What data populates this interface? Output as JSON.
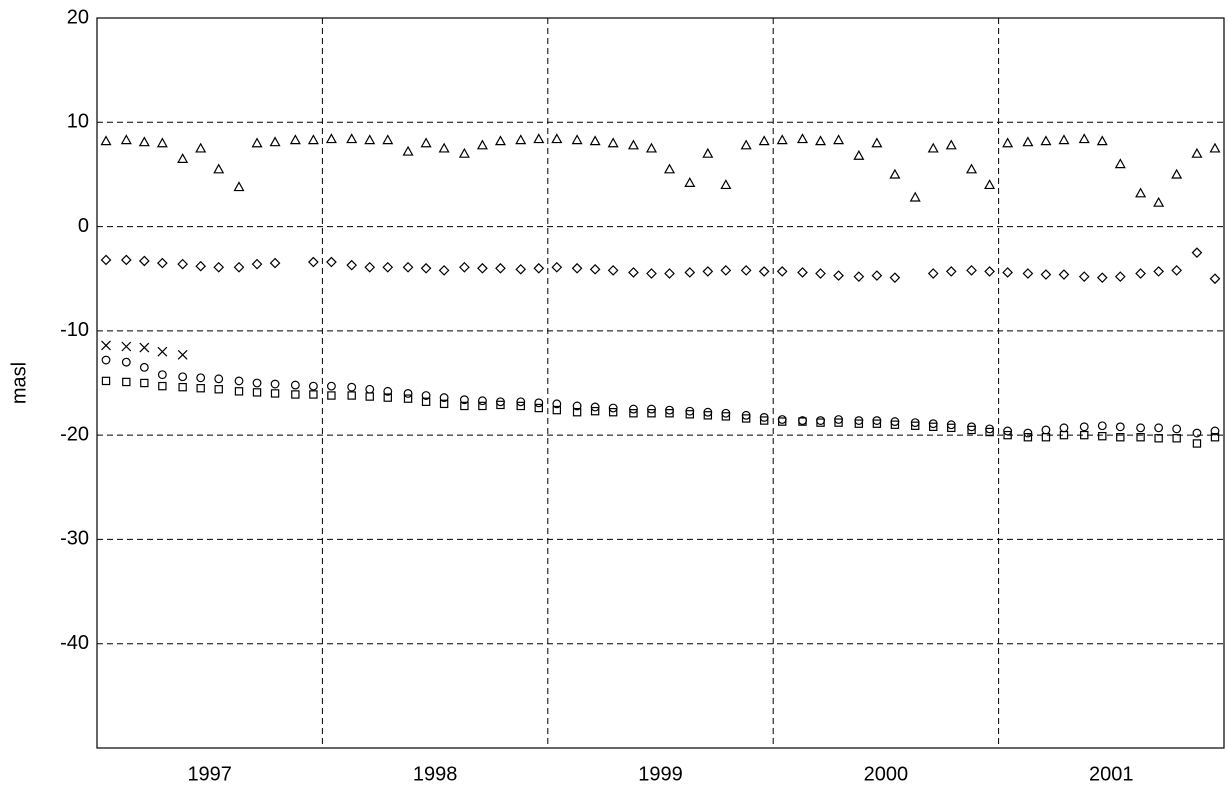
{
  "chart_data": {
    "type": "scatter",
    "y_label": "masl",
    "x": [
      1997.04,
      1997.13,
      1997.21,
      1997.29,
      1997.38,
      1997.46,
      1997.54,
      1997.63,
      1997.71,
      1997.79,
      1997.88,
      1997.96,
      1998.04,
      1998.13,
      1998.21,
      1998.29,
      1998.38,
      1998.46,
      1998.54,
      1998.63,
      1998.71,
      1998.79,
      1998.88,
      1998.96,
      1999.04,
      1999.13,
      1999.21,
      1999.29,
      1999.38,
      1999.46,
      1999.54,
      1999.63,
      1999.71,
      1999.79,
      1999.88,
      1999.96,
      2000.04,
      2000.13,
      2000.21,
      2000.29,
      2000.38,
      2000.46,
      2000.54,
      2000.63,
      2000.71,
      2000.79,
      2000.88,
      2000.96,
      2001.04,
      2001.13,
      2001.21,
      2001.29,
      2001.38,
      2001.46,
      2001.54,
      2001.63,
      2001.71,
      2001.79,
      2001.88,
      2001.96
    ],
    "series": [
      {
        "marker": "triangle",
        "color": "#000000",
        "values": [
          8.2,
          8.3,
          8.1,
          8.0,
          6.5,
          7.5,
          5.5,
          3.8,
          8.0,
          8.1,
          8.3,
          8.3,
          8.4,
          8.4,
          8.3,
          8.3,
          7.2,
          8.0,
          7.5,
          7.0,
          7.8,
          8.2,
          8.3,
          8.4,
          8.4,
          8.3,
          8.2,
          8.0,
          7.8,
          7.5,
          5.5,
          4.2,
          7.0,
          4.0,
          7.8,
          8.2,
          8.3,
          8.4,
          8.2,
          8.3,
          6.8,
          8.0,
          5.0,
          2.8,
          7.5,
          7.8,
          5.5,
          4.0,
          8.0,
          8.1,
          8.2,
          8.3,
          8.4,
          8.2,
          6.0,
          3.2,
          2.3,
          5.0,
          7.0,
          7.5
        ]
      },
      {
        "marker": "diamond",
        "color": "#000000",
        "values": [
          -3.2,
          -3.2,
          -3.3,
          -3.5,
          -3.6,
          -3.8,
          -3.9,
          -3.9,
          -3.6,
          -3.5,
          null,
          -3.4,
          -3.4,
          -3.7,
          -3.9,
          -3.9,
          -3.9,
          -4.0,
          -4.2,
          -3.9,
          -4.0,
          -4.0,
          -4.1,
          -4.0,
          -3.9,
          -4.0,
          -4.1,
          -4.2,
          -4.4,
          -4.5,
          -4.5,
          -4.4,
          -4.3,
          -4.2,
          -4.2,
          -4.3,
          -4.3,
          -4.4,
          -4.5,
          -4.7,
          -4.8,
          -4.7,
          -4.9,
          null,
          -4.5,
          -4.3,
          -4.2,
          -4.3,
          -4.4,
          -4.5,
          -4.6,
          -4.6,
          -4.8,
          -4.9,
          -4.8,
          -4.5,
          -4.3,
          -4.2,
          -2.5,
          -5.0
        ]
      },
      {
        "marker": "circle",
        "color": "#000000",
        "values": [
          -12.8,
          -13.0,
          -13.5,
          -14.2,
          -14.4,
          -14.5,
          -14.6,
          -14.8,
          -15.0,
          -15.1,
          -15.2,
          -15.3,
          -15.3,
          -15.4,
          -15.6,
          -15.8,
          -16.0,
          -16.2,
          -16.4,
          -16.6,
          -16.7,
          -16.8,
          -16.8,
          -16.9,
          -17.0,
          -17.2,
          -17.3,
          -17.4,
          -17.5,
          -17.5,
          -17.6,
          -17.7,
          -17.8,
          -17.9,
          -18.1,
          -18.3,
          -18.5,
          -18.6,
          -18.6,
          -18.5,
          -18.6,
          -18.6,
          -18.7,
          -18.8,
          -18.9,
          -19.0,
          -19.2,
          -19.4,
          -19.6,
          -19.8,
          -19.5,
          -19.3,
          -19.2,
          -19.1,
          -19.2,
          -19.3,
          -19.3,
          -19.4,
          -19.8,
          -19.6
        ]
      },
      {
        "marker": "square",
        "color": "#000000",
        "values": [
          -14.8,
          -14.9,
          -15.0,
          -15.3,
          -15.4,
          -15.5,
          -15.6,
          -15.8,
          -15.9,
          -16.0,
          -16.1,
          -16.1,
          -16.2,
          -16.2,
          -16.3,
          -16.4,
          -16.5,
          -16.8,
          -17.0,
          -17.2,
          -17.2,
          -17.1,
          -17.2,
          -17.4,
          -17.6,
          -17.8,
          -17.7,
          -17.8,
          -17.9,
          -17.9,
          -17.9,
          -18.0,
          -18.1,
          -18.2,
          -18.4,
          -18.6,
          -18.7,
          -18.7,
          -18.8,
          -18.8,
          -18.9,
          -18.9,
          -19.0,
          -19.1,
          -19.2,
          -19.3,
          -19.5,
          -19.7,
          -20.0,
          -20.2,
          -20.2,
          -20.0,
          -20.0,
          -20.1,
          -20.2,
          -20.2,
          -20.3,
          -20.3,
          -20.8,
          -20.2
        ]
      },
      {
        "marker": "cross",
        "color": "#000000",
        "values": [
          -11.4,
          -11.5,
          -11.6,
          -12.0,
          -12.3,
          null,
          null,
          null,
          null,
          null,
          null,
          null,
          null,
          null,
          null,
          null,
          null,
          null,
          null,
          null,
          null,
          null,
          null,
          null,
          null,
          null,
          null,
          null,
          null,
          null,
          null,
          null,
          null,
          null,
          null,
          null,
          null,
          null,
          null,
          null,
          null,
          null,
          null,
          null,
          null,
          null,
          null,
          null,
          null,
          null,
          null,
          null,
          null,
          null,
          null,
          null,
          null,
          null,
          null,
          null
        ]
      }
    ],
    "xlim": [
      1997,
      2002
    ],
    "ylim": [
      -50,
      20
    ],
    "yticks": [
      20,
      10,
      0,
      -10,
      -20,
      -30,
      -40
    ],
    "xticks": [
      {
        "value": 1997.5,
        "label": "1997"
      },
      {
        "value": 1998.5,
        "label": "1998"
      },
      {
        "value": 1999.5,
        "label": "1999"
      },
      {
        "value": 2000.5,
        "label": "2000"
      },
      {
        "value": 2001.5,
        "label": "2001"
      }
    ],
    "xgrid": [
      1998,
      1999,
      2000,
      2001
    ],
    "grid": true
  }
}
